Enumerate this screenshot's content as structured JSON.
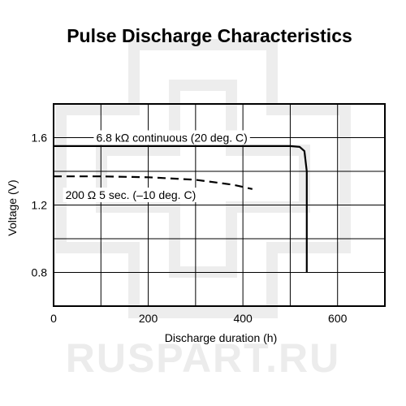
{
  "chart_data": {
    "type": "line",
    "title": "Pulse Discharge Characteristics",
    "xlabel": "Discharge duration (h)",
    "ylabel": "Voltage (V)",
    "xlim": [
      0,
      700
    ],
    "ylim": [
      0.6,
      1.8
    ],
    "xticks": [
      0,
      200,
      400,
      600
    ],
    "yticks": [
      0.8,
      1.2,
      1.6
    ],
    "ytick_labels": [
      "0.8",
      "1.2",
      "1.6"
    ],
    "grid": true,
    "series": [
      {
        "name": "6.8 kΩ continuous (20 deg. C)",
        "style": "solid",
        "color": "#000000",
        "points": [
          [
            0,
            1.55
          ],
          [
            500,
            1.55
          ],
          [
            520,
            1.545
          ],
          [
            530,
            1.52
          ],
          [
            535,
            1.4
          ],
          [
            535,
            0.8
          ]
        ]
      },
      {
        "name": "200 Ω 5 sec. (–10 deg. C)",
        "style": "dashed",
        "color": "#000000",
        "points": [
          [
            0,
            1.37
          ],
          [
            100,
            1.37
          ],
          [
            200,
            1.365
          ],
          [
            300,
            1.35
          ],
          [
            380,
            1.32
          ],
          [
            420,
            1.295
          ]
        ]
      }
    ],
    "annotations": [
      {
        "text": "6.8 kΩ continuous (20 deg. C)",
        "x": 90,
        "y": 1.6
      },
      {
        "text": "200 Ω 5 sec. (–10 deg. C)",
        "x": 25,
        "y": 1.26
      }
    ]
  },
  "watermark": {
    "text": "RUSPART.RU",
    "color": "#ececec"
  }
}
